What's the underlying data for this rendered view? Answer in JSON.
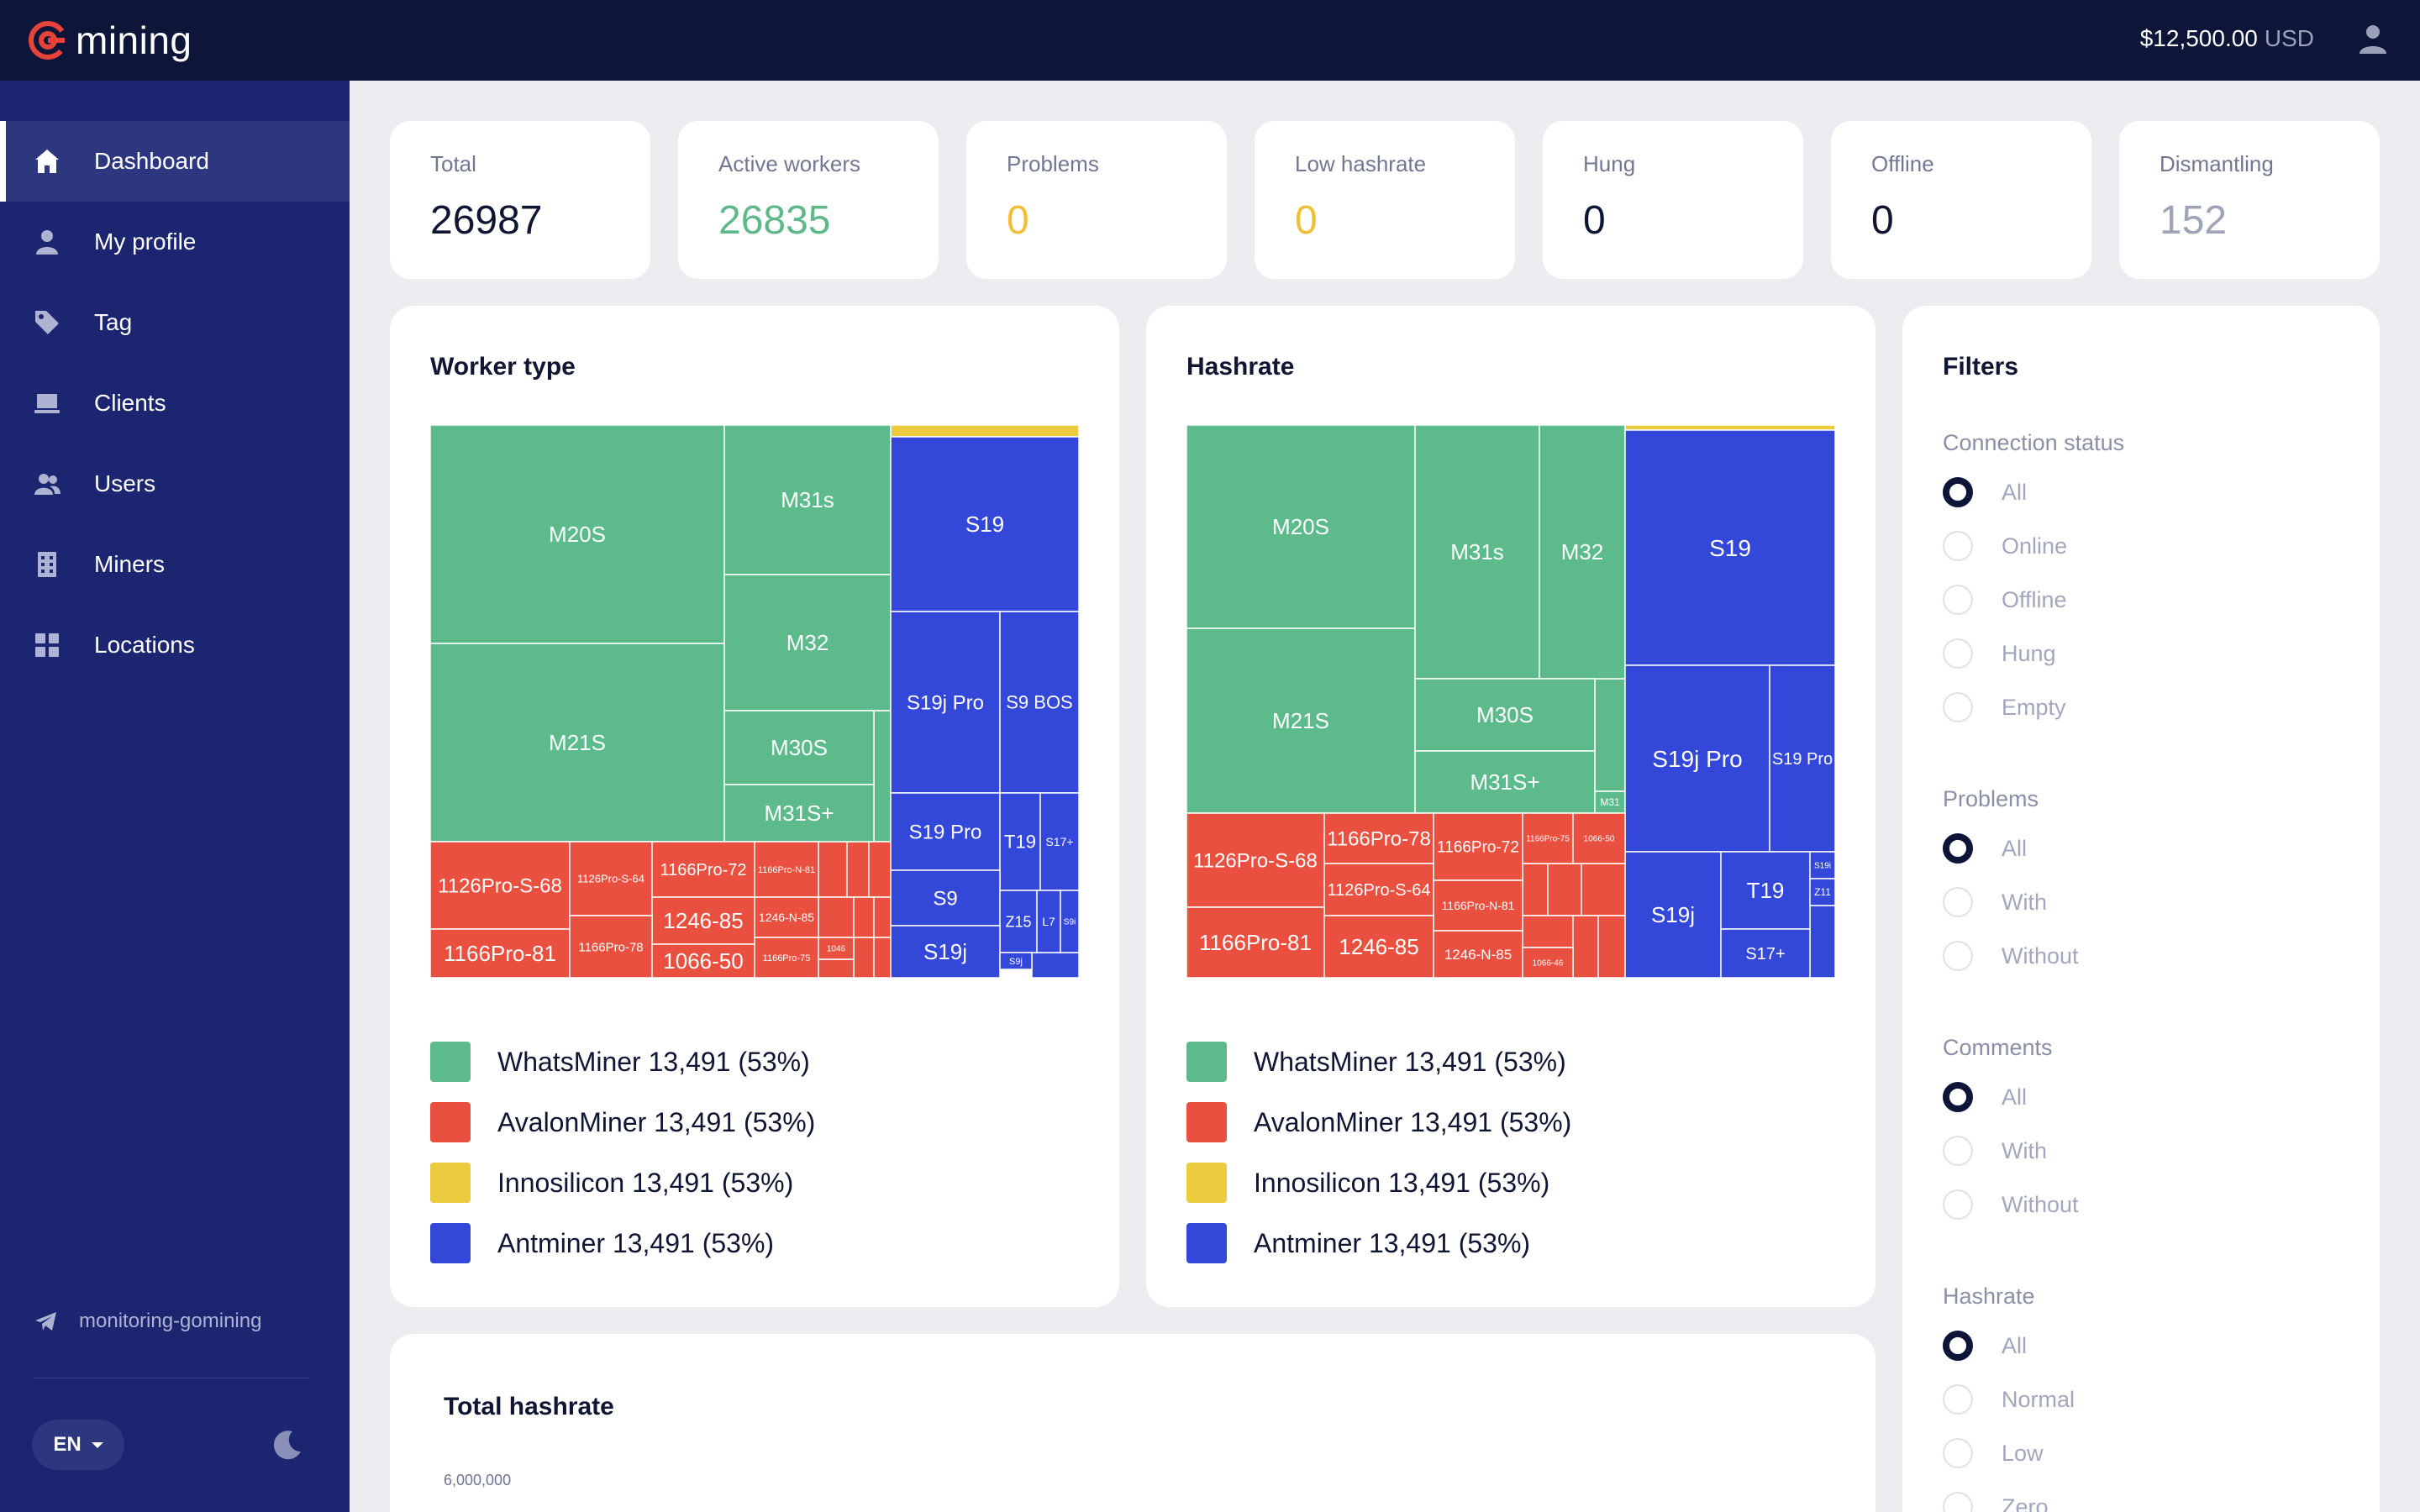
{
  "app": {
    "name": "mining"
  },
  "header": {
    "balance": "$12,500.00",
    "currency": "USD"
  },
  "sidebar": {
    "items": [
      {
        "label": "Dashboard",
        "icon": "home-icon",
        "active": true
      },
      {
        "label": "My profile",
        "icon": "person-icon"
      },
      {
        "label": "Tag",
        "icon": "tag-icon"
      },
      {
        "label": "Clients",
        "icon": "laptop-icon"
      },
      {
        "label": "Users",
        "icon": "users-icon"
      },
      {
        "label": "Miners",
        "icon": "building-icon"
      },
      {
        "label": "Locations",
        "icon": "grid-icon"
      }
    ],
    "telegram": "monitoring-gomining",
    "language": "EN"
  },
  "stats": [
    {
      "label": "Total",
      "value": "26987",
      "color": "#0f1633"
    },
    {
      "label": "Active workers",
      "value": "26835",
      "color": "#5fb88a"
    },
    {
      "label": "Problems",
      "value": "0",
      "color": "#f1bf36"
    },
    {
      "label": "Low hashrate",
      "value": "0",
      "color": "#f1bf36"
    },
    {
      "label": "Hung",
      "value": "0",
      "color": "#0f1633"
    },
    {
      "label": "Offline",
      "value": "0",
      "color": "#0f1633"
    },
    {
      "label": "Dismantling",
      "value": "152",
      "color": "#9ea3b5"
    }
  ],
  "worker_panel": {
    "title": "Worker type"
  },
  "hashrate_panel": {
    "title": "Hashrate"
  },
  "colors": {
    "whatsminer": "#5dba8b",
    "avalon": "#e9503f",
    "innosilicon": "#eccb3f",
    "antminer": "#3347d9"
  },
  "legend": [
    {
      "brand": "WhatsMiner",
      "value": "13,491 (53%)",
      "color": "#5dba8b"
    },
    {
      "brand": "AvalonMiner",
      "value": "13,491 (53%)",
      "color": "#e9503f"
    },
    {
      "brand": "Innosilicon",
      "value": "13,491 (53%)",
      "color": "#eccb3f"
    },
    {
      "brand": "Antminer",
      "value": "13,491 (53%)",
      "color": "#3347d9"
    }
  ],
  "filters": {
    "title": "Filters",
    "groups": [
      {
        "label": "Connection status",
        "options": [
          "All",
          "Online",
          "Offline",
          "Hung",
          "Empty"
        ],
        "selected": "All"
      },
      {
        "label": "Problems",
        "options": [
          "All",
          "With",
          "Without"
        ],
        "selected": "All"
      },
      {
        "label": "Comments",
        "options": [
          "All",
          "With",
          "Without"
        ],
        "selected": "All"
      },
      {
        "label": "Hashrate",
        "options": [
          "All",
          "Normal",
          "Low",
          "Zero"
        ],
        "selected": "All"
      }
    ]
  },
  "total_hashrate": {
    "title": "Total hashrate",
    "y_tick": "6,000,000"
  },
  "treemaps": {
    "worker": [
      {
        "label": "M20S",
        "brand": "whatsminer"
      },
      {
        "label": "M21S",
        "brand": "whatsminer"
      },
      {
        "label": "M31s",
        "brand": "whatsminer"
      },
      {
        "label": "M32",
        "brand": "whatsminer"
      },
      {
        "label": "M30S",
        "brand": "whatsminer"
      },
      {
        "label": "M31S+",
        "brand": "whatsminer"
      },
      {
        "label": "S19",
        "brand": "antminer"
      },
      {
        "label": "S19j Pro",
        "brand": "antminer"
      },
      {
        "label": "S9 BOS",
        "brand": "antminer"
      },
      {
        "label": "S19 Pro",
        "brand": "antminer"
      },
      {
        "label": "T19",
        "brand": "antminer"
      },
      {
        "label": "S17+",
        "brand": "antminer"
      },
      {
        "label": "S9",
        "brand": "antminer"
      },
      {
        "label": "Z15",
        "brand": "antminer"
      },
      {
        "label": "L7",
        "brand": "antminer"
      },
      {
        "label": "S9i",
        "brand": "antminer"
      },
      {
        "label": "S19j",
        "brand": "antminer"
      },
      {
        "label": "S9j",
        "brand": "antminer"
      },
      {
        "label": "1126Pro-S-68",
        "brand": "avalon"
      },
      {
        "label": "1126Pro-S-64",
        "brand": "avalon"
      },
      {
        "label": "1166Pro-72",
        "brand": "avalon"
      },
      {
        "label": "1166Pro-N-81",
        "brand": "avalon"
      },
      {
        "label": "1246-85",
        "brand": "avalon"
      },
      {
        "label": "1246-N-85",
        "brand": "avalon"
      },
      {
        "label": "1166Pro-81",
        "brand": "avalon"
      },
      {
        "label": "1166Pro-78",
        "brand": "avalon"
      },
      {
        "label": "1066-50",
        "brand": "avalon"
      },
      {
        "label": "1166Pro-75",
        "brand": "avalon"
      },
      {
        "label": "1046",
        "brand": "avalon"
      }
    ],
    "hashrate": [
      {
        "label": "M20S",
        "brand": "whatsminer"
      },
      {
        "label": "M21S",
        "brand": "whatsminer"
      },
      {
        "label": "M31s",
        "brand": "whatsminer"
      },
      {
        "label": "M32",
        "brand": "whatsminer"
      },
      {
        "label": "M30S",
        "brand": "whatsminer"
      },
      {
        "label": "M31S+",
        "brand": "whatsminer"
      },
      {
        "label": "M31",
        "brand": "whatsminer"
      },
      {
        "label": "S19",
        "brand": "antminer"
      },
      {
        "label": "S19j Pro",
        "brand": "antminer"
      },
      {
        "label": "S19 Pro",
        "brand": "antminer"
      },
      {
        "label": "S19j",
        "brand": "antminer"
      },
      {
        "label": "T19",
        "brand": "antminer"
      },
      {
        "label": "S17+",
        "brand": "antminer"
      },
      {
        "label": "S19i",
        "brand": "antminer"
      },
      {
        "label": "Z11",
        "brand": "antminer"
      },
      {
        "label": "1126Pro-S-68",
        "brand": "avalon"
      },
      {
        "label": "1166Pro-78",
        "brand": "avalon"
      },
      {
        "label": "1166Pro-72",
        "brand": "avalon"
      },
      {
        "label": "1166Pro-75",
        "brand": "avalon"
      },
      {
        "label": "1066-50",
        "brand": "avalon"
      },
      {
        "label": "1126Pro-S-64",
        "brand": "avalon"
      },
      {
        "label": "1166Pro-N-81",
        "brand": "avalon"
      },
      {
        "label": "1166Pro-81",
        "brand": "avalon"
      },
      {
        "label": "1246-85",
        "brand": "avalon"
      },
      {
        "label": "1246-N-85",
        "brand": "avalon"
      },
      {
        "label": "1066-46",
        "brand": "avalon"
      }
    ]
  }
}
